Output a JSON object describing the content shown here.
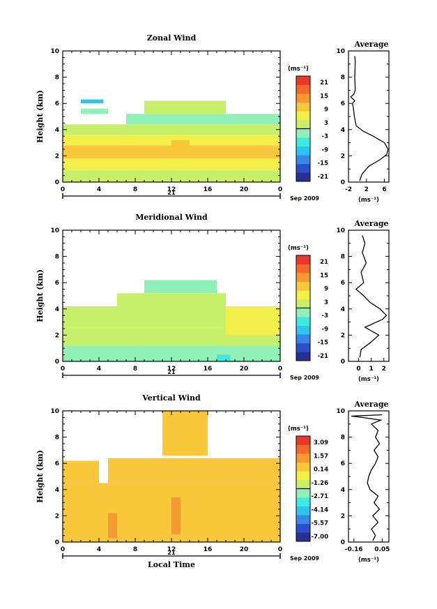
{
  "chart_data": [
    {
      "type": "heatmap",
      "title": "Zonal Wind",
      "xlabel": "",
      "ylabel": "Height (km)",
      "xlim": [
        0,
        24
      ],
      "ylim": [
        0,
        10
      ],
      "x_ticks": [
        "0",
        "4",
        "8",
        "12",
        "16",
        "20",
        "0"
      ],
      "y_ticks": [
        "0",
        "2",
        "4",
        "6",
        "8",
        "10"
      ],
      "day_label": "21",
      "date_label": "Sep 2009",
      "colorbar": {
        "unit": "(ms⁻¹)",
        "labels": [
          "21",
          "15",
          "9",
          "3",
          "-3",
          "-9",
          "-15",
          "-21"
        ],
        "range": [
          -24,
          24
        ]
      },
      "profile": {
        "title": "Average",
        "xlabel": "(ms⁻¹)",
        "x_ticks": [
          "-2",
          "2",
          "6"
        ],
        "xlim": [
          -2,
          7
        ],
        "points": [
          [
            0.5,
            0.1
          ],
          [
            1,
            0.6
          ],
          [
            2.5,
            1.2
          ],
          [
            5,
            1.7
          ],
          [
            6.5,
            2.1
          ],
          [
            6.8,
            2.5
          ],
          [
            6,
            3
          ],
          [
            3.5,
            3.5
          ],
          [
            1.2,
            3.9
          ],
          [
            -0.3,
            4.3
          ],
          [
            -0.7,
            5
          ],
          [
            -0.9,
            5.6
          ],
          [
            -1.1,
            6
          ],
          [
            -0.6,
            6.2
          ],
          [
            -1.5,
            6.5
          ],
          [
            -0.8,
            6.7
          ],
          [
            -0.5,
            7
          ],
          [
            -0.6,
            8
          ],
          [
            -0.5,
            9.2
          ],
          [
            -0.6,
            9.6
          ]
        ]
      },
      "cells": [
        {
          "t0": 0,
          "t1": 24,
          "h0": 0,
          "h1": 0.9,
          "v": 1.5
        },
        {
          "t0": 0,
          "t1": 24,
          "h0": 0.9,
          "h1": 1.8,
          "v": 5
        },
        {
          "t0": 0,
          "t1": 24,
          "h0": 1.8,
          "h1": 2.8,
          "v": 8
        },
        {
          "t0": 0,
          "t1": 24,
          "h0": 2.8,
          "h1": 3.6,
          "v": 5
        },
        {
          "t0": 0,
          "t1": 24,
          "h0": 3.6,
          "h1": 4.4,
          "v": 1.5
        },
        {
          "t0": 7,
          "t1": 24,
          "h0": 4.4,
          "h1": 5.2,
          "v": -1
        },
        {
          "t0": 9,
          "t1": 18,
          "h0": 5.2,
          "h1": 6.2,
          "v": 1
        },
        {
          "t0": 12,
          "t1": 14,
          "h0": 2,
          "h1": 3.2,
          "v": 10
        },
        {
          "t0": 2,
          "t1": 5,
          "h0": 5.2,
          "h1": 5.6,
          "v": -2
        },
        {
          "t0": 2,
          "t1": 4.5,
          "h0": 6,
          "h1": 6.3,
          "v": -9
        }
      ]
    },
    {
      "type": "heatmap",
      "title": "Meridional Wind",
      "xlabel": "",
      "ylabel": "Height (km)",
      "xlim": [
        0,
        24
      ],
      "ylim": [
        0,
        10
      ],
      "x_ticks": [
        "0",
        "4",
        "8",
        "12",
        "16",
        "20",
        "0"
      ],
      "y_ticks": [
        "0",
        "2",
        "4",
        "6",
        "8",
        "10"
      ],
      "day_label": "21",
      "date_label": "Sep 2009",
      "colorbar": {
        "unit": "(ms⁻¹)",
        "labels": [
          "21",
          "15",
          "9",
          "3",
          "-3",
          "-9",
          "-15",
          "-21"
        ],
        "range": [
          -24,
          24
        ]
      },
      "profile": {
        "title": "Average",
        "xlabel": "(ms⁻¹)",
        "x_ticks": [
          "0",
          "1",
          "2"
        ],
        "xlim": [
          -0.8,
          2.4
        ],
        "points": [
          [
            0.1,
            0.3
          ],
          [
            0.2,
            0.9
          ],
          [
            0.9,
            1.4
          ],
          [
            1.6,
            2
          ],
          [
            0.5,
            2.6
          ],
          [
            1.9,
            3.2
          ],
          [
            2.2,
            3.5
          ],
          [
            1.7,
            4
          ],
          [
            0.9,
            4.5
          ],
          [
            0.4,
            5
          ],
          [
            -0.2,
            5.5
          ],
          [
            0.4,
            6
          ],
          [
            0.2,
            6.8
          ],
          [
            0.6,
            7.5
          ],
          [
            0.3,
            8.3
          ],
          [
            0.5,
            9
          ],
          [
            0.3,
            9.6
          ]
        ]
      },
      "cells": [
        {
          "t0": 0,
          "t1": 24,
          "h0": 0,
          "h1": 1.2,
          "v": -2
        },
        {
          "t0": 0,
          "t1": 24,
          "h0": 1.2,
          "h1": 2.6,
          "v": 1
        },
        {
          "t0": 0,
          "t1": 24,
          "h0": 2.6,
          "h1": 4.2,
          "v": 2
        },
        {
          "t0": 6,
          "t1": 18,
          "h0": 4.2,
          "h1": 5.2,
          "v": 1
        },
        {
          "t0": 9,
          "t1": 17,
          "h0": 5.2,
          "h1": 6.2,
          "v": -0.5
        },
        {
          "t0": 18,
          "t1": 24,
          "h0": 2,
          "h1": 4.2,
          "v": 4
        },
        {
          "t0": 17,
          "t1": 18.5,
          "h0": 0,
          "h1": 0.5,
          "v": -8
        }
      ]
    },
    {
      "type": "heatmap",
      "title": "Vertical Wind",
      "xlabel": "Local Time",
      "ylabel": "Height (km)",
      "xlim": [
        0,
        24
      ],
      "ylim": [
        0,
        10
      ],
      "x_ticks": [
        "0",
        "4",
        "8",
        "12",
        "16",
        "20",
        "0"
      ],
      "y_ticks": [
        "0",
        "2",
        "4",
        "6",
        "8",
        "10"
      ],
      "day_label": "21",
      "date_label": "Sep 2009",
      "colorbar": {
        "unit": "(ms⁻¹)",
        "labels": [
          "3.09",
          "1.57",
          "0.14",
          "-1.26",
          "-2.71",
          "-4.14",
          "-5.57",
          "-7.00"
        ],
        "range": [
          -7.7,
          3.8
        ]
      },
      "profile": {
        "title": "Average",
        "xlabel": "(ms⁻¹)",
        "x_ticks": [
          "-0.16",
          "0.05"
        ],
        "xlim": [
          -0.2,
          0.1
        ],
        "points": [
          [
            -0.02,
            0.1
          ],
          [
            0,
            0.5
          ],
          [
            -0.03,
            1
          ],
          [
            0.02,
            1.5
          ],
          [
            -0.02,
            2
          ],
          [
            0.03,
            2.5
          ],
          [
            -0.01,
            3
          ],
          [
            0.02,
            3.5
          ],
          [
            -0.04,
            4
          ],
          [
            -0.06,
            4.5
          ],
          [
            -0.05,
            5
          ],
          [
            -0.03,
            5.5
          ],
          [
            0,
            6
          ],
          [
            0.02,
            6.5
          ],
          [
            -0.01,
            7
          ],
          [
            0.03,
            7.5
          ],
          [
            0,
            8
          ],
          [
            0.02,
            8.5
          ],
          [
            -0.03,
            9
          ],
          [
            0.04,
            9.3
          ],
          [
            -0.1,
            9.5
          ],
          [
            -0.18,
            9.6
          ],
          [
            0.05,
            9.7
          ]
        ]
      },
      "cells": [
        {
          "t0": 0,
          "t1": 24,
          "h0": 0,
          "h1": 4.5,
          "v": 0.14
        },
        {
          "t0": 5,
          "t1": 24,
          "h0": 4.5,
          "h1": 6.4,
          "v": 0.14
        },
        {
          "t0": 0,
          "t1": 4,
          "h0": 4.5,
          "h1": 6.2,
          "v": 0.14
        },
        {
          "t0": 11,
          "t1": 16,
          "h0": 6.6,
          "h1": 10,
          "v": 0.14
        },
        {
          "t0": 5,
          "t1": 6,
          "h0": 0.3,
          "h1": 2.2,
          "v": 1.4
        },
        {
          "t0": 12,
          "t1": 13,
          "h0": 0.6,
          "h1": 3.4,
          "v": 1.2
        }
      ]
    }
  ]
}
